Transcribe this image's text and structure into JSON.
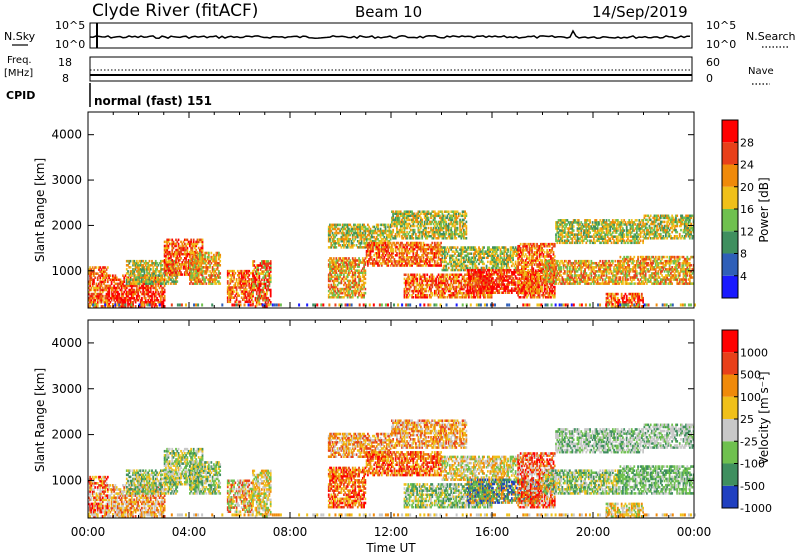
{
  "header": {
    "station": "Clyde River (fitACF)",
    "beam": "Beam 10",
    "date": "14/Sep/2019"
  },
  "strips": {
    "nsky_label": "N.Sky",
    "nsky_top": "10^5",
    "nsky_bottom": "10^0",
    "nsearch_label": "N.Search",
    "nsearch_top": "10^5",
    "nsearch_bottom": "10^0",
    "freq_label": "Freq.",
    "freq_unit": "[MHz]",
    "freq_top": "18",
    "freq_bottom": "8",
    "nave_label": "Nave",
    "nave_top": "60",
    "nave_bottom": "0",
    "cpid_label": "CPID",
    "cpid_value": "normal (fast) 151"
  },
  "power_scale": {
    "title": "Power [dB]",
    "ticks": [
      "4",
      "8",
      "12",
      "16",
      "20",
      "24",
      "28"
    ],
    "colors": [
      "#1a1aff",
      "#2f5fb8",
      "#3f8f5f",
      "#6fc04f",
      "#f0c01a",
      "#f08a0a",
      "#e8401a",
      "#ff0000"
    ]
  },
  "velocity_scale": {
    "title": "Velocity [m s⁻¹]",
    "ticks": [
      "1000",
      "500",
      "100",
      "25",
      "-25",
      "-100",
      "-500",
      "-1000"
    ],
    "colors": [
      "#2040c0",
      "#3f8f5f",
      "#6fc04f",
      "#c8c8c8",
      "#f0c01a",
      "#f08a0a",
      "#e8401a",
      "#ff0000"
    ]
  },
  "chart_data": [
    {
      "type": "heatmap",
      "name": "power",
      "ylabel": "Slant Range [km]",
      "ylim": [
        180,
        4500
      ],
      "yticks": [
        1000,
        2000,
        3000,
        4000
      ],
      "xlim": [
        0,
        24
      ],
      "xticks": [
        "00:00",
        "04:00",
        "08:00",
        "12:00",
        "16:00",
        "20:00",
        "00:00"
      ]
    },
    {
      "type": "heatmap",
      "name": "velocity",
      "ylabel": "Slant Range [km]",
      "ylim": [
        180,
        4500
      ],
      "yticks": [
        1000,
        2000,
        3000,
        4000
      ],
      "xlim": [
        0,
        24
      ],
      "xticks": [
        "00:00",
        "04:00",
        "08:00",
        "12:00",
        "16:00",
        "20:00",
        "00:00"
      ],
      "xlabel": "Time UT"
    }
  ]
}
